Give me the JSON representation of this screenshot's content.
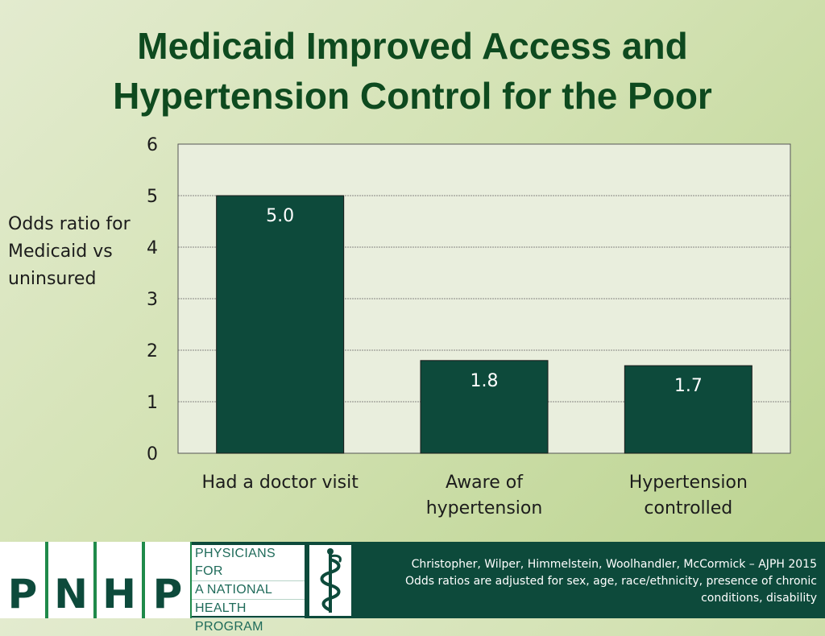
{
  "title": {
    "line1": "Medicaid Improved Access and",
    "line2": "Hypertension Control for the Poor"
  },
  "y_axis_label": {
    "line1": "Odds ratio for",
    "line2": "Medicaid vs",
    "line3": "uninsured"
  },
  "colors": {
    "bar": "#0d4a3b",
    "plot_background": "#e9eedd",
    "footer": "#0d4a3b"
  },
  "chart_data": {
    "type": "bar",
    "categories": [
      [
        "Had a doctor visit"
      ],
      [
        "Aware of",
        "hypertension"
      ],
      [
        "Hypertension",
        "controlled"
      ]
    ],
    "values": [
      5.0,
      1.8,
      1.7
    ],
    "data_labels": [
      "5.0",
      "1.8",
      "1.7"
    ],
    "ylim": [
      0,
      6
    ],
    "yticks": [
      0,
      1,
      2,
      3,
      4,
      5,
      6
    ],
    "grid": true,
    "legend": "none"
  },
  "footer": {
    "logo_letters": [
      "P",
      "N",
      "H",
      "P"
    ],
    "logo_words": [
      "PHYSICIANS FOR",
      "A NATIONAL",
      "HEALTH",
      "PROGRAM"
    ],
    "logo_icon": "caduceus-icon",
    "citation_line1": "Christopher, Wilper, Himmelstein, Woolhandler, McCormick – AJPH 2015",
    "citation_line2": "Odds ratios are adjusted for sex, age, race/ethnicity, presence of chronic",
    "citation_line3": "conditions, disability"
  }
}
